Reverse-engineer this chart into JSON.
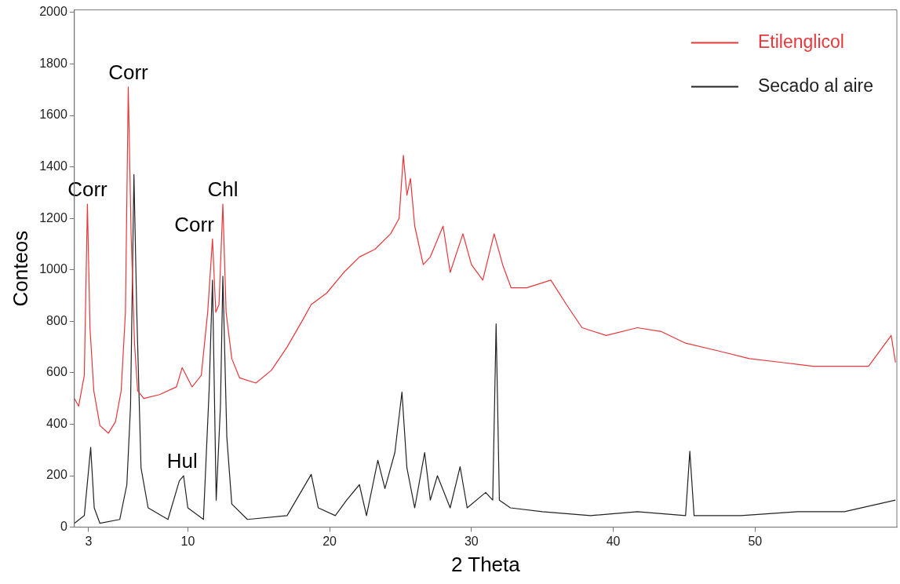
{
  "chart_data": {
    "type": "line",
    "xlabel": "2 Theta",
    "ylabel": "Conteos",
    "xlim": [
      2,
      60
    ],
    "xticks": [
      3,
      10,
      20,
      30,
      40,
      50
    ],
    "ylim": [
      0,
      2010
    ],
    "yticks": [
      0,
      200,
      400,
      600,
      800,
      1000,
      1200,
      1400,
      1600,
      1800,
      2000
    ],
    "grid": false,
    "legend": "top right",
    "marker": "none",
    "line_style": "solid",
    "series": [
      {
        "name": "Etilenglicol",
        "color": "#e8363a",
        "x": [
          2.0,
          2.3,
          2.7,
          2.92,
          3.1,
          3.37,
          3.8,
          4.4,
          4.9,
          5.3,
          5.6,
          5.8,
          6.0,
          6.24,
          6.46,
          6.9,
          8.0,
          9.2,
          9.6,
          10.3,
          10.95,
          11.4,
          11.74,
          11.97,
          12.2,
          12.47,
          12.7,
          13.1,
          13.65,
          14.8,
          15.9,
          17.0,
          18.1,
          18.7,
          19.8,
          21.0,
          22.1,
          23.2,
          24.3,
          24.9,
          25.2,
          25.45,
          25.7,
          26.0,
          26.6,
          27.1,
          28.0,
          28.5,
          29.4,
          30.0,
          30.8,
          31.6,
          32.2,
          32.8,
          33.9,
          35.6,
          36.7,
          37.8,
          39.5,
          41.7,
          43.4,
          45.1,
          47.4,
          49.6,
          51.9,
          54.1,
          56.3,
          58.0,
          59.6,
          59.9
        ],
        "values": [
          500,
          470,
          590,
          1255,
          775,
          530,
          395,
          365,
          410,
          530,
          835,
          1710,
          1140,
          715,
          530,
          500,
          515,
          545,
          620,
          545,
          590,
          835,
          1120,
          835,
          865,
          1255,
          835,
          655,
          580,
          560,
          610,
          700,
          805,
          865,
          910,
          990,
          1050,
          1080,
          1140,
          1200,
          1445,
          1290,
          1355,
          1170,
          1020,
          1050,
          1170,
          990,
          1140,
          1020,
          960,
          1140,
          1020,
          930,
          930,
          960,
          865,
          775,
          745,
          775,
          760,
          715,
          685,
          655,
          640,
          625,
          625,
          625,
          745,
          640
        ]
      },
      {
        "name": "Secado al aire",
        "color": "#222222",
        "x": [
          2.0,
          2.7,
          3.15,
          3.4,
          3.8,
          5.2,
          5.7,
          5.96,
          6.2,
          6.4,
          6.7,
          7.2,
          8.6,
          9.4,
          9.7,
          10.0,
          11.1,
          11.5,
          11.74,
          12.0,
          12.3,
          12.47,
          12.75,
          13.1,
          14.2,
          17.0,
          18.7,
          19.2,
          20.4,
          21.2,
          22.1,
          22.6,
          23.4,
          23.9,
          24.6,
          25.1,
          25.45,
          26.0,
          26.7,
          27.1,
          27.6,
          28.5,
          29.2,
          29.7,
          31.0,
          31.5,
          31.74,
          31.97,
          32.75,
          35.0,
          38.4,
          41.7,
          45.1,
          45.4,
          45.7,
          49.0,
          53.0,
          56.3,
          59.9
        ],
        "values": [
          15,
          45,
          310,
          75,
          15,
          30,
          165,
          470,
          1370,
          835,
          230,
          75,
          30,
          180,
          200,
          75,
          30,
          530,
          960,
          105,
          470,
          975,
          350,
          90,
          30,
          45,
          205,
          75,
          45,
          105,
          165,
          45,
          260,
          150,
          290,
          525,
          230,
          75,
          290,
          105,
          200,
          75,
          235,
          75,
          135,
          105,
          790,
          105,
          75,
          60,
          45,
          60,
          45,
          295,
          45,
          45,
          60,
          60,
          105
        ]
      }
    ],
    "annotations": [
      {
        "text": "Corr",
        "x": 2.92,
        "y": 1255
      },
      {
        "text": "Corr",
        "x": 5.8,
        "y": 1710
      },
      {
        "text": "Corr",
        "x": 11.74,
        "y": 1120
      },
      {
        "text": "Chl",
        "x": 12.47,
        "y": 1255
      },
      {
        "text": "Hul",
        "x": 9.6,
        "y": 200
      }
    ]
  }
}
